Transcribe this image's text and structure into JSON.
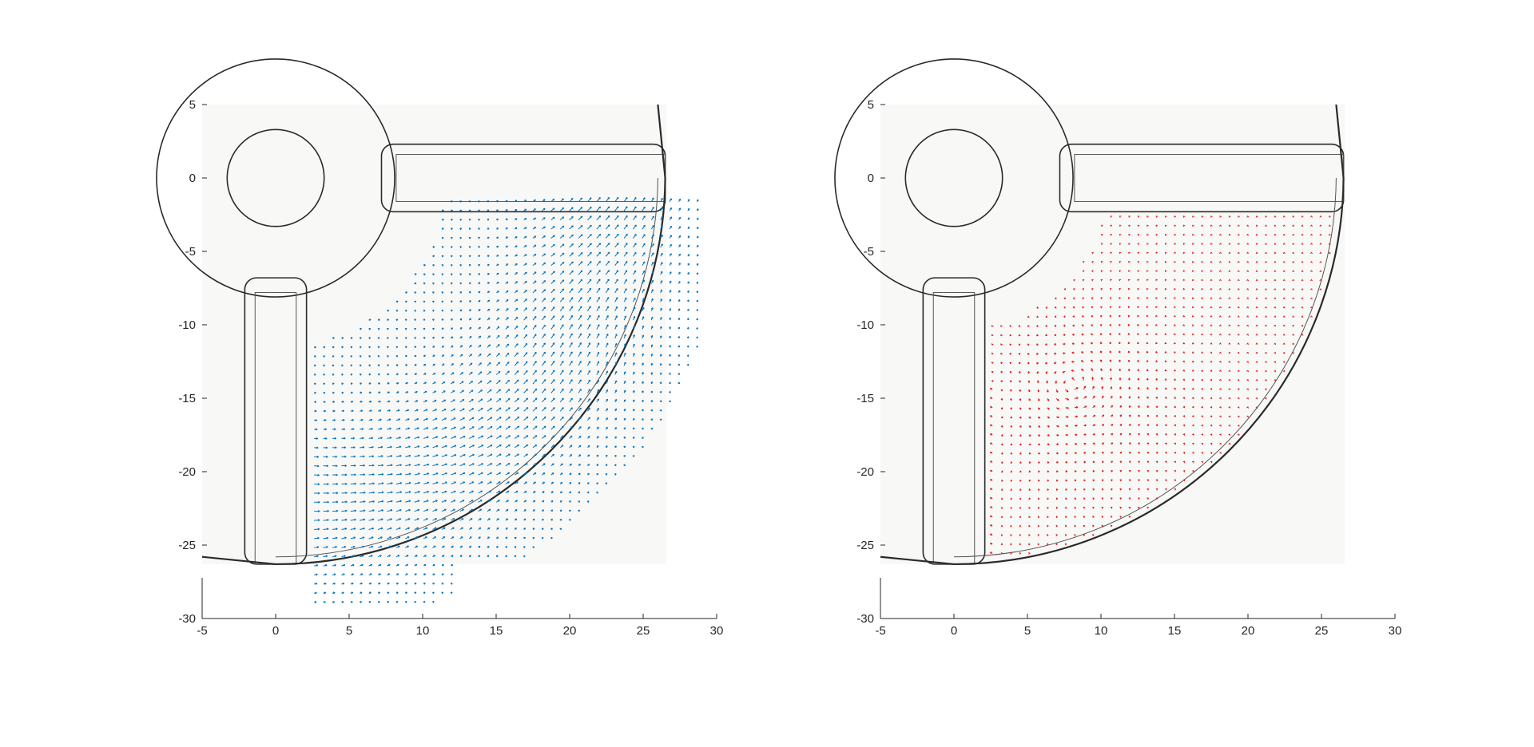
{
  "figure": {
    "title": ""
  },
  "chart_data": [
    {
      "type": "quiver",
      "title": "",
      "xlabel": "",
      "ylabel": "",
      "xlim": [
        -5,
        30
      ],
      "ylim": [
        -30,
        5
      ],
      "xticks": [
        "-5",
        "0",
        "5",
        "10",
        "15",
        "20",
        "25",
        "30"
      ],
      "yticks": [
        "5",
        "0",
        "-5",
        "-10",
        "-15",
        "-20",
        "-25",
        "-30"
      ],
      "grid": false,
      "background": "photo of part geometry (ring, two rods, quarter-circle wall)",
      "arrow_color": "#0072BD",
      "field": {
        "region": "band from x≈2 to x≈29, y≈-1 to y≈-29, outside the rods",
        "x_range": [
          2,
          29
        ],
        "y_range": [
          -29.5,
          -1
        ],
        "direction": "diagonal toward upper-right in the outer band, near-horizontal (+x) at lower left",
        "max_speed": 1.0
      }
    },
    {
      "type": "quiver",
      "title": "",
      "xlabel": "",
      "ylabel": "",
      "xlim": [
        -5,
        30
      ],
      "ylim": [
        -30,
        5
      ],
      "xticks": [
        "-5",
        "0",
        "5",
        "10",
        "15",
        "20",
        "25",
        "30"
      ],
      "yticks": [
        "5",
        "0",
        "-5",
        "-10",
        "-15",
        "-20",
        "-25",
        "-30"
      ],
      "grid": false,
      "background": "photo of part geometry (ring, two rods, quarter-circle wall)",
      "arrow_color": "#E41A1C",
      "field": {
        "region": "inside quarter circle of radius 26.5, x from 2 to 26.5, y from -2 to -26",
        "x_range": [
          2,
          26.5
        ],
        "y_range": [
          -26,
          -2
        ],
        "direction": "swirling vortex centered near (8, -14); small radial motion elsewhere",
        "max_speed": 0.6
      }
    }
  ]
}
